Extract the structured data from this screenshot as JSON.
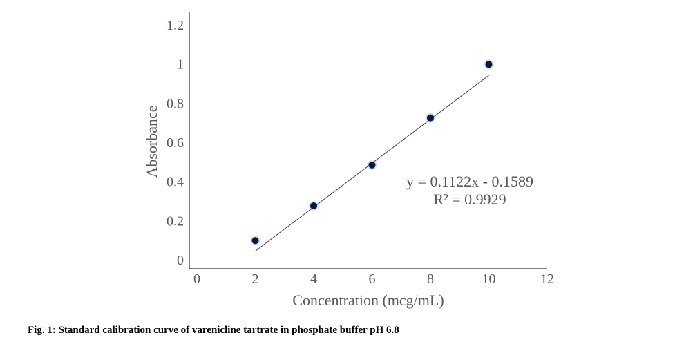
{
  "chart_data": {
    "type": "scatter",
    "xlabel": "Concentration (mcg/mL)",
    "ylabel": "Absorbance",
    "xlim": [
      0,
      12
    ],
    "ylim": [
      0,
      1.2
    ],
    "x_ticks": [
      "0",
      "2",
      "4",
      "6",
      "8",
      "10",
      "12"
    ],
    "y_ticks": [
      "0",
      "0.2",
      "0.4",
      "0.6",
      "0.8",
      "1",
      "1.2"
    ],
    "points": [
      {
        "x": 2,
        "y": 0.098
      },
      {
        "x": 4,
        "y": 0.275
      },
      {
        "x": 6,
        "y": 0.484
      },
      {
        "x": 8,
        "y": 0.725
      },
      {
        "x": 10,
        "y": 0.998
      }
    ],
    "trendline": {
      "type": "linear",
      "slope": 0.1122,
      "intercept": -0.1589,
      "x_range": [
        2,
        10
      ]
    },
    "annotations": [
      "y = 0.1122x - 0.1589",
      "R² = 0.9929"
    ],
    "grid": false,
    "legend": "none",
    "colors": {
      "axis": "#000000",
      "marker": "#0a1a33",
      "marker_glow": "#4472c4",
      "trendline": "#404040",
      "text": "#595959"
    }
  },
  "caption": "Fig. 1: Standard calibration curve of varenicline tartrate in phosphate buffer pH 6.8"
}
